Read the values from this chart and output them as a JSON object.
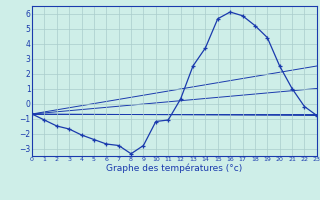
{
  "title": "Graphe des températures (°c)",
  "background_color": "#ceeee8",
  "grid_color": "#aacccc",
  "line_color": "#1a3aad",
  "xlim": [
    0,
    23
  ],
  "ylim": [
    -3.5,
    6.5
  ],
  "yticks": [
    -3,
    -2,
    -1,
    0,
    1,
    2,
    3,
    4,
    5,
    6
  ],
  "xticks": [
    0,
    1,
    2,
    3,
    4,
    5,
    6,
    7,
    8,
    9,
    10,
    11,
    12,
    13,
    14,
    15,
    16,
    17,
    18,
    19,
    20,
    21,
    22,
    23
  ],
  "main_series": {
    "x": [
      0,
      1,
      2,
      3,
      4,
      5,
      6,
      7,
      8,
      9,
      10,
      11,
      12,
      13,
      14,
      15,
      16,
      17,
      18,
      19,
      20,
      21,
      22,
      23
    ],
    "y": [
      -0.7,
      -1.1,
      -1.5,
      -1.7,
      -2.1,
      -2.4,
      -2.7,
      -2.8,
      -3.35,
      -2.8,
      -1.2,
      -1.1,
      0.3,
      2.5,
      3.7,
      5.65,
      6.1,
      5.85,
      5.2,
      4.4,
      2.5,
      1.0,
      -0.2,
      -0.8
    ]
  },
  "straight_lines": [
    {
      "x": [
        0,
        23
      ],
      "y": [
        -0.7,
        -0.8
      ]
    },
    {
      "x": [
        0,
        23
      ],
      "y": [
        -0.7,
        -0.7
      ]
    },
    {
      "x": [
        0,
        23
      ],
      "y": [
        -0.7,
        1.0
      ]
    },
    {
      "x": [
        0,
        23
      ],
      "y": [
        -0.7,
        2.5
      ]
    }
  ]
}
